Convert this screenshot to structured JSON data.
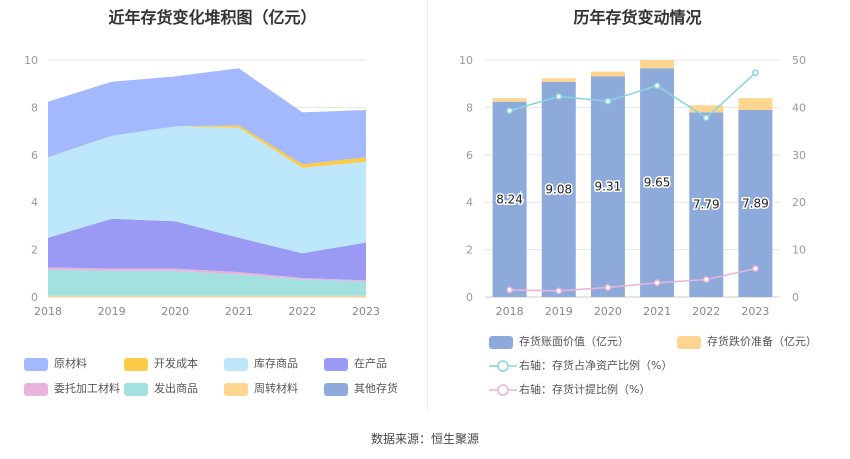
{
  "left_title": "近年存货变化堆积图（亿元）",
  "right_title": "历年存货变动情况",
  "footer": "数据来源：恒生聚源",
  "chart_data": [
    {
      "type": "area",
      "title": "近年存货变化堆积图（亿元）",
      "x": [
        "2018",
        "2019",
        "2020",
        "2021",
        "2022",
        "2023"
      ],
      "ylim": [
        0,
        10
      ],
      "yticks": [
        "0",
        "2",
        "4",
        "6",
        "8",
        "10"
      ],
      "grid": true,
      "legend_position": "bottom",
      "series": [
        {
          "name": "周转材料",
          "color": "#fdd591",
          "values": [
            0.05,
            0.05,
            0.05,
            0.05,
            0.05,
            0.05
          ]
        },
        {
          "name": "发出商品",
          "color": "#a3e1e0",
          "values": [
            1.1,
            1.05,
            1.05,
            0.9,
            0.7,
            0.6
          ]
        },
        {
          "name": "委托加工材料",
          "color": "#e8b4dc",
          "values": [
            0.1,
            0.1,
            0.1,
            0.1,
            0.05,
            0.05
          ]
        },
        {
          "name": "在产品",
          "color": "#9a9af5",
          "values": [
            1.25,
            2.1,
            2.0,
            1.45,
            1.05,
            1.6
          ]
        },
        {
          "name": "库存商品",
          "color": "#bde8fb",
          "values": [
            3.4,
            3.5,
            4.0,
            4.65,
            3.6,
            3.4
          ]
        },
        {
          "name": "开发成本",
          "color": "#fccb47",
          "values": [
            0,
            0,
            0,
            0.1,
            0.15,
            0.2
          ]
        },
        {
          "name": "原材料",
          "color": "#a3b8fd",
          "values": [
            2.34,
            2.28,
            2.11,
            2.4,
            2.19,
            1.99
          ]
        },
        {
          "name": "其他存货",
          "color": "#8eaadb",
          "values": [
            0,
            0,
            0,
            0,
            0,
            0
          ]
        }
      ],
      "legend_order": [
        "原材料",
        "开发成本",
        "库存商品",
        "在产品",
        "委托加工材料",
        "发出商品",
        "周转材料",
        "其他存货"
      ]
    },
    {
      "type": "bar",
      "title": "历年存货变动情况",
      "categories": [
        "2018",
        "2019",
        "2020",
        "2021",
        "2022",
        "2023"
      ],
      "ylim": [
        0,
        10
      ],
      "yticks": [
        "0",
        "2",
        "4",
        "6",
        "8",
        "10"
      ],
      "y2lim": [
        0,
        50
      ],
      "y2ticks": [
        "0",
        "10",
        "20",
        "30",
        "40",
        "50"
      ],
      "grid": true,
      "legend_position": "bottom",
      "series": [
        {
          "name": "存货账面价值（亿元）",
          "kind": "bar",
          "color": "#8eaadb",
          "values": [
            8.24,
            9.08,
            9.31,
            9.65,
            7.79,
            7.89
          ],
          "labels": [
            "8.24",
            "9.08",
            "9.31",
            "9.65",
            "7.79",
            "7.89"
          ]
        },
        {
          "name": "存货跌价准备（亿元）",
          "kind": "bar-stack",
          "color": "#fdd591",
          "values": [
            0.15,
            0.15,
            0.2,
            0.35,
            0.3,
            0.5
          ]
        },
        {
          "name": "右轴：存货占净资产比例（%）",
          "kind": "line",
          "axis": "right",
          "color": "#86d6df",
          "values": [
            39.3,
            42.3,
            41.3,
            44.6,
            37.8,
            47.3
          ]
        },
        {
          "name": "右轴：存货计提比例（%）",
          "kind": "line",
          "axis": "right",
          "color": "#e8b4dc",
          "values": [
            1.5,
            1.3,
            2.0,
            3.0,
            3.7,
            6.0
          ]
        }
      ]
    }
  ]
}
